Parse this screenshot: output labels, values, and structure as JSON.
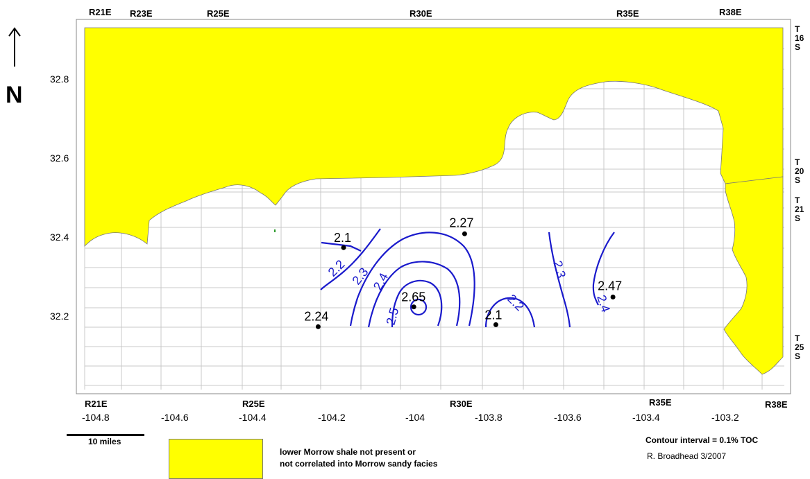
{
  "north": {
    "letter": "N"
  },
  "ranges_top": [
    "R21E",
    "R23E",
    "R25E",
    "R30E",
    "R35E",
    "R38E"
  ],
  "ranges_bottom": [
    "R21E",
    "R25E",
    "R30E",
    "R35E",
    "R38E"
  ],
  "townships": [
    {
      "lines": [
        "T",
        "16",
        "S"
      ]
    },
    {
      "lines": [
        "T",
        "20",
        "S"
      ]
    },
    {
      "lines": [
        "T",
        "21",
        "S"
      ]
    },
    {
      "lines": [
        "T",
        "25",
        "S"
      ]
    }
  ],
  "lat_ticks": [
    "32.8",
    "32.6",
    "32.4",
    "32.2"
  ],
  "lon_ticks": [
    "-104.8",
    "-104.6",
    "-104.4",
    "-104.2",
    "-104",
    "-103.8",
    "-103.6",
    "-103.4",
    "-103.2"
  ],
  "wells": [
    {
      "label": "2.1",
      "lon": -104.16,
      "lat": 32.375
    },
    {
      "label": "2.27",
      "lon": -103.85,
      "lat": 32.41
    },
    {
      "label": "2.65",
      "lon": -103.98,
      "lat": 32.225
    },
    {
      "label": "2.24",
      "lon": -104.225,
      "lat": 32.175
    },
    {
      "label": "2.1",
      "lon": -103.77,
      "lat": 32.18
    },
    {
      "label": "2.47",
      "lon": -103.47,
      "lat": 32.25
    }
  ],
  "contour_labels": [
    "2.2",
    "2.3",
    "2.4",
    "2.5",
    "2.2",
    "2.3",
    "2.4"
  ],
  "colors": {
    "shale_absent": "#ffff00",
    "contour": "#1a1acc",
    "grid": "#c8c8c8"
  },
  "scale_bar": {
    "label": "10 miles"
  },
  "legend": {
    "line1": "lower Morrow shale not present or",
    "line2": "not correlated into Morrow sandy facies"
  },
  "contour_interval": "Contour interval = 0.1% TOC",
  "author": "R. Broadhead 3/2007"
}
